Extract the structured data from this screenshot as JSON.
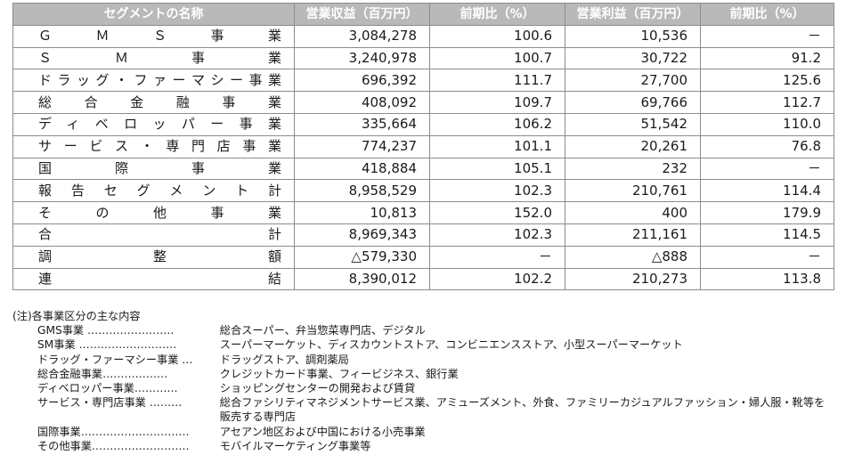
{
  "table": {
    "headers": [
      "セグメントの名称",
      "営業収益（百万円）",
      "前期比（%）",
      "営業利益（百万円）",
      "前期比（%）"
    ],
    "rows": [
      {
        "name": "ＧＭＳ事業",
        "revenue": "3,084,278",
        "rev_yoy": "100.6",
        "profit": "10,536",
        "profit_yoy": "－"
      },
      {
        "name": "ＳＭ事業",
        "revenue": "3,240,978",
        "rev_yoy": "100.7",
        "profit": "30,722",
        "profit_yoy": "91.2"
      },
      {
        "name": "ドラッグ・ファーマシー事業",
        "revenue": "696,392",
        "rev_yoy": "111.7",
        "profit": "27,700",
        "profit_yoy": "125.6"
      },
      {
        "name": "総合金融事業",
        "revenue": "408,092",
        "rev_yoy": "109.7",
        "profit": "69,766",
        "profit_yoy": "112.7"
      },
      {
        "name": "ディベロッパー事業",
        "revenue": "335,664",
        "rev_yoy": "106.2",
        "profit": "51,542",
        "profit_yoy": "110.0"
      },
      {
        "name": "サービス・専門店事業",
        "revenue": "774,237",
        "rev_yoy": "101.1",
        "profit": "20,261",
        "profit_yoy": "76.8"
      },
      {
        "name": "国際事業",
        "revenue": "418,884",
        "rev_yoy": "105.1",
        "profit": "232",
        "profit_yoy": "－"
      },
      {
        "name": "報告セグメント計",
        "revenue": "8,958,529",
        "rev_yoy": "102.3",
        "profit": "210,761",
        "profit_yoy": "114.4"
      },
      {
        "name": "その他事業",
        "revenue": "10,813",
        "rev_yoy": "152.0",
        "profit": "400",
        "profit_yoy": "179.9"
      },
      {
        "name": "合計",
        "revenue": "8,969,343",
        "rev_yoy": "102.3",
        "profit": "211,161",
        "profit_yoy": "114.5"
      },
      {
        "name": "調整額",
        "revenue": "△579,330",
        "rev_yoy": "－",
        "profit": "△888",
        "profit_yoy": "－"
      },
      {
        "name": "連結",
        "revenue": "8,390,012",
        "rev_yoy": "102.2",
        "profit": "210,273",
        "profit_yoy": "113.8"
      }
    ]
  },
  "notes": {
    "title": "(注)各事業区分の主な内容",
    "items": [
      {
        "label": "GMS事業 ……………………",
        "text": "総合スーパー、弁当惣菜専門店、デジタル"
      },
      {
        "label": "SM事業 ………………………",
        "text": "スーパーマーケット、ディスカウントストア、コンビニエンスストア、小型スーパーマーケット"
      },
      {
        "label": "ドラッグ・ファーマシー事業 …",
        "text": "ドラッグストア、調剤薬局"
      },
      {
        "label": "総合金融事業………………",
        "text": "クレジットカード事業、フィービジネス、銀行業"
      },
      {
        "label": "ディベロッパー事業…………",
        "text": "ショッピングセンターの開発および賃貸"
      },
      {
        "label": "サービス・専門店事業 ………",
        "text": "総合ファシリティマネジメントサービス業、アミューズメント、外食、ファミリーカジュアルファッション・婦人服・靴等を販売する専門店"
      },
      {
        "label": "国際事業…………………………",
        "text": "アセアン地区および中国における小売事業"
      },
      {
        "label": "その他事業………………………",
        "text": "モバイルマーケティング事業等"
      }
    ]
  }
}
